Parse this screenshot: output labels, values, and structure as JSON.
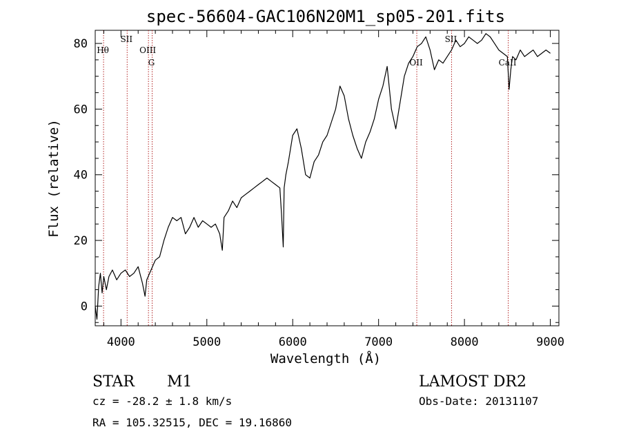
{
  "chart_data": {
    "type": "line",
    "title": "spec-56604-GAC106N20M1_sp05-201.fits",
    "xlabel": "Wavelength (Å)",
    "ylabel": "Flux (relative)",
    "xlim": [
      3700,
      9100
    ],
    "ylim": [
      -6,
      84
    ],
    "xticks": [
      4000,
      5000,
      6000,
      7000,
      8000,
      9000
    ],
    "yticks": [
      0,
      20,
      40,
      60,
      80
    ],
    "grid": false,
    "series": [
      {
        "x": [
          3700,
          3720,
          3740,
          3760,
          3780,
          3800,
          3830,
          3860,
          3900,
          3950,
          4000,
          4050,
          4100,
          4150,
          4200,
          4250,
          4280,
          4300,
          4350,
          4400,
          4450,
          4500,
          4550,
          4600,
          4650,
          4700,
          4750,
          4800,
          4850,
          4900,
          4950,
          5000,
          5050,
          5100,
          5150,
          5180,
          5200,
          5250,
          5300,
          5350,
          5400,
          5450,
          5500,
          5550,
          5600,
          5650,
          5700,
          5750,
          5800,
          5850,
          5870,
          5890,
          5900,
          5920,
          5950,
          6000,
          6050,
          6100,
          6150,
          6200,
          6250,
          6300,
          6350,
          6400,
          6450,
          6500,
          6550,
          6600,
          6650,
          6700,
          6750,
          6800,
          6850,
          6900,
          6950,
          7000,
          7050,
          7100,
          7150,
          7200,
          7250,
          7300,
          7350,
          7400,
          7450,
          7500,
          7550,
          7600,
          7650,
          7700,
          7750,
          7800,
          7850,
          7900,
          7950,
          8000,
          8050,
          8100,
          8150,
          8200,
          8250,
          8300,
          8350,
          8400,
          8450,
          8500,
          8520,
          8540,
          8560,
          8600,
          8650,
          8700,
          8750,
          8800,
          8850,
          8900,
          8950,
          9000
        ],
        "values": [
          0,
          -4,
          6,
          10,
          4,
          9,
          5,
          9,
          11,
          8,
          10,
          11,
          9,
          10,
          12,
          7,
          3,
          8,
          11,
          14,
          15,
          20,
          24,
          27,
          26,
          27,
          22,
          24,
          27,
          24,
          26,
          25,
          24,
          25,
          22,
          17,
          27,
          29,
          32,
          30,
          33,
          34,
          35,
          36,
          37,
          38,
          39,
          38,
          37,
          36,
          28,
          18,
          36,
          40,
          44,
          52,
          54,
          48,
          40,
          39,
          44,
          46,
          50,
          52,
          56,
          60,
          67,
          64,
          57,
          52,
          48,
          45,
          50,
          53,
          57,
          63,
          67,
          73,
          60,
          54,
          62,
          70,
          74,
          76,
          79,
          80,
          82,
          78,
          72,
          75,
          74,
          76,
          78,
          81,
          79,
          80,
          82,
          81,
          80,
          81,
          83,
          82,
          80,
          78,
          77,
          76,
          66,
          72,
          76,
          75,
          78,
          76,
          77,
          78,
          76,
          77,
          78,
          77
        ]
      }
    ],
    "line_markers": [
      {
        "label": "Hθ",
        "wavelength": 3797,
        "row": 1
      },
      {
        "label": "SII",
        "wavelength": 4072,
        "row": 0
      },
      {
        "label": "OIII",
        "wavelength": 4320,
        "row": 1
      },
      {
        "label": "G",
        "wavelength": 4363,
        "row": 2
      },
      {
        "label": "OII",
        "wavelength": 7445,
        "row": 2
      },
      {
        "label": "SII",
        "wavelength": 7850,
        "row": 0
      },
      {
        "label": "CaII",
        "wavelength": 8510,
        "row": 2
      }
    ]
  },
  "info": {
    "object_class": "STAR",
    "subclass": "M1",
    "redshift": "cz = -28.2 ± 1.8 km/s",
    "coords": "RA = 105.32515, DEC =  19.16860",
    "survey": "LAMOST DR2",
    "obs_date": "Obs-Date: 20131107"
  }
}
